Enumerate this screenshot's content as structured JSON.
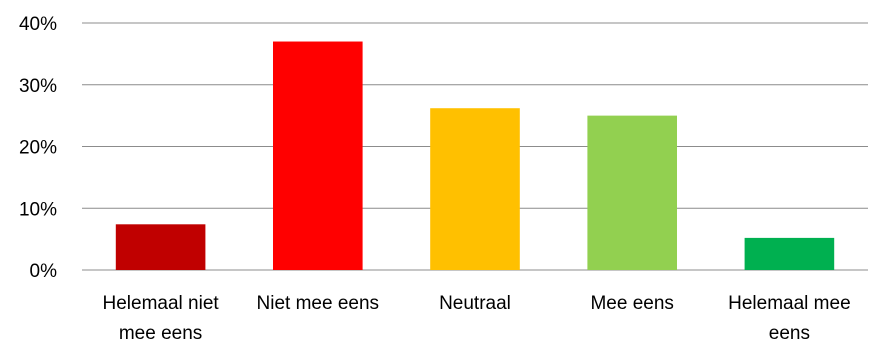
{
  "chart_data": {
    "type": "bar",
    "title": "",
    "xlabel": "",
    "ylabel": "",
    "categories": [
      [
        "Helemaal niet",
        "mee eens"
      ],
      [
        "Niet mee eens"
      ],
      [
        "Neutraal"
      ],
      [
        "Mee eens"
      ],
      [
        "Helemaal mee",
        "eens"
      ]
    ],
    "values": [
      7.4,
      37.0,
      26.2,
      25.0,
      5.2
    ],
    "colors": [
      "#C00000",
      "#FF0000",
      "#FFC000",
      "#92D050",
      "#00B050"
    ],
    "ylim": [
      0,
      40
    ],
    "yticks": [
      0,
      10,
      20,
      30,
      40
    ],
    "ytick_labels": [
      "0%",
      "10%",
      "20%",
      "30%",
      "40%"
    ],
    "grid": true,
    "legend": "none"
  }
}
